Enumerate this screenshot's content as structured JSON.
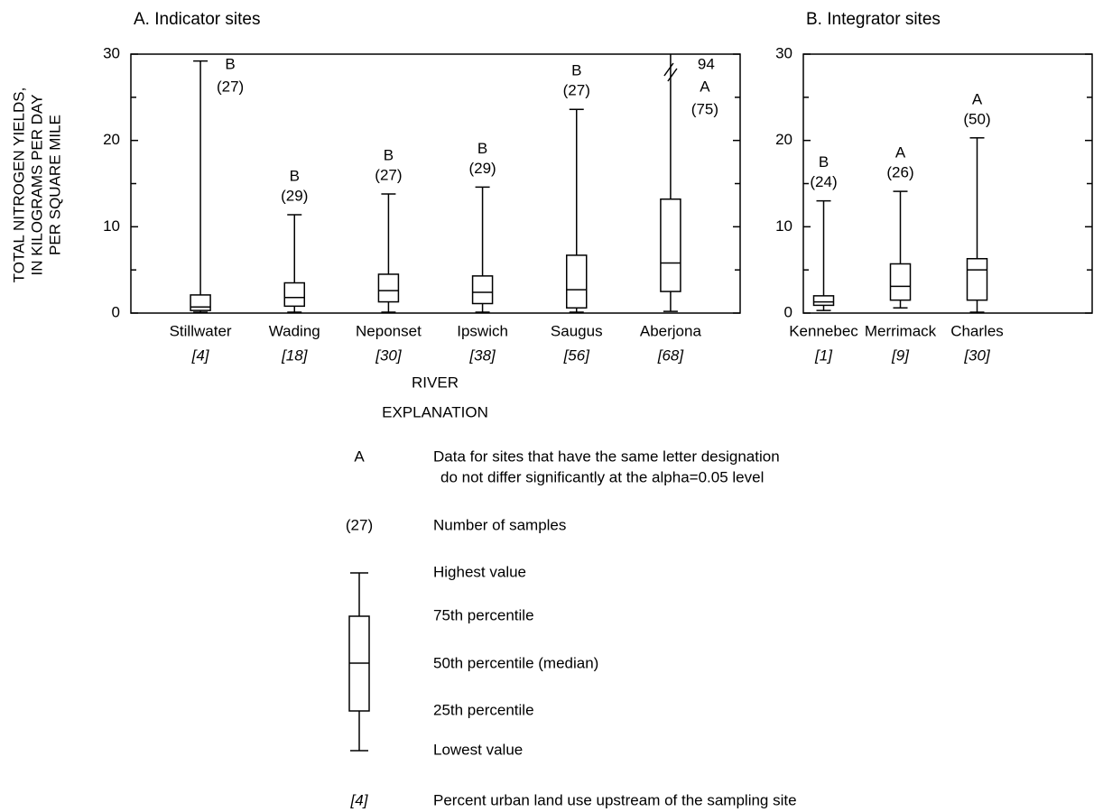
{
  "chart_data": [
    {
      "type": "box",
      "title": "A. Indicator sites",
      "y_label": [
        "TOTAL NITROGEN YIELDS,",
        "IN KILOGRAMS PER DAY",
        "PER SQUARE MILE"
      ],
      "x_label": "RIVER",
      "categories": [
        "Stillwater",
        "Wading",
        "Neponset",
        "Ipswich",
        "Saugus",
        "Aberjona"
      ],
      "urban_percent": [
        "[4]",
        "[18]",
        "[30]",
        "[38]",
        "[56]",
        "[68]"
      ],
      "letters": [
        "B",
        "B",
        "B",
        "B",
        "B",
        "A"
      ],
      "sample_counts": [
        "(27)",
        "(29)",
        "(27)",
        "(29)",
        "(27)",
        "(75)"
      ],
      "min": [
        0.1,
        0.1,
        0.1,
        0.1,
        0.1,
        0.2
      ],
      "q1": [
        0.3,
        0.8,
        1.3,
        1.1,
        0.6,
        2.5
      ],
      "median": [
        0.7,
        1.8,
        2.6,
        2.4,
        2.7,
        5.8
      ],
      "q3": [
        2.1,
        3.5,
        4.5,
        4.3,
        6.7,
        13.2
      ],
      "max": [
        29.2,
        11.4,
        13.8,
        14.6,
        23.6,
        94
      ],
      "color": "#000000",
      "ylim": [
        0,
        30
      ],
      "yticks": [
        0,
        10,
        20,
        30
      ],
      "yminor": [
        5,
        15,
        25
      ]
    },
    {
      "type": "box",
      "title": "B. Integrator sites",
      "categories": [
        "Kennebec",
        "Merrimack",
        "Charles"
      ],
      "urban_percent": [
        "[1]",
        "[9]",
        "[30]"
      ],
      "letters": [
        "B",
        "A",
        "A"
      ],
      "sample_counts": [
        "(24)",
        "(26)",
        "(50)"
      ],
      "min": [
        0.3,
        0.6,
        0.1
      ],
      "q1": [
        0.9,
        1.5,
        1.5
      ],
      "median": [
        1.3,
        3.1,
        5.0
      ],
      "q3": [
        2.0,
        5.7,
        6.3
      ],
      "max": [
        13.0,
        14.1,
        20.3
      ],
      "color": "#000000",
      "ylim": [
        0,
        30
      ],
      "yticks": [
        0,
        10,
        20,
        30
      ],
      "yminor": [
        5,
        15,
        25
      ]
    }
  ],
  "explanation": {
    "title": "EXPLANATION",
    "letter_symbol": "A",
    "letter_text": [
      "Data for sites that have the same letter designation",
      "do not differ significantly at the alpha=0.05 level"
    ],
    "count_symbol": "(27)",
    "count_text": "Number of samples",
    "box_labels": [
      "Highest value",
      "75th percentile",
      "50th percentile (median)",
      "25th percentile",
      "Lowest value"
    ],
    "urban_symbol": "[4]",
    "urban_text": "Percent urban land use upstream of the sampling site"
  }
}
